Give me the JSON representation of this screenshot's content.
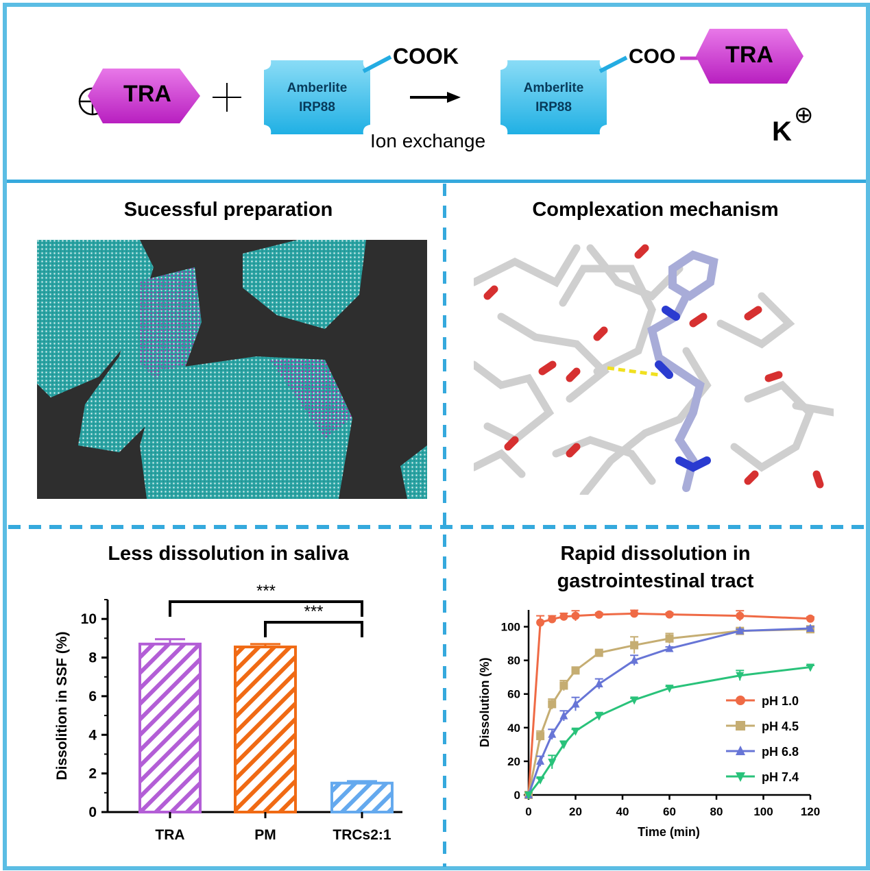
{
  "scheme": {
    "drug": "TRA",
    "plus_sign": "+",
    "cation_symbol": "⊕",
    "resin_line1": "Amberlite",
    "resin_line2": "IRP88",
    "resin_group": "COOK",
    "product_group": "COO",
    "product_drug": "TRA",
    "process_label": "Ion exchange",
    "counter_ion": "K",
    "counter_ion_charge": "⊕",
    "colors": {
      "drug": "#cc33cc",
      "resin": "#3cc2ea",
      "frame": "#5bbde4"
    }
  },
  "panels": {
    "top_left_title": "Sucessful preparation",
    "top_right_title": "Complexation mechanism",
    "bottom_left_title": "Less dissolution in saliva",
    "bottom_right_title_line1": "Rapid dissolution in",
    "bottom_right_title_line2": "gastrointestinal tract"
  },
  "chart_data": [
    {
      "type": "bar",
      "categories": [
        "TRA",
        "PM",
        "TRCs2:1"
      ],
      "values": [
        8.7,
        8.55,
        1.5
      ],
      "errors": [
        0.25,
        0.15,
        0.1
      ],
      "ylabel": "Dissolition in SSF (%)",
      "ylim": [
        0,
        11
      ],
      "yticks": [
        0,
        2,
        4,
        6,
        8,
        10
      ],
      "colors": [
        "#b35ed6",
        "#f06a14",
        "#64a9ee"
      ],
      "pattern": "diagonal-hatch",
      "significance": [
        {
          "from": "TRA",
          "to": "TRCs2:1",
          "label": "***"
        },
        {
          "from": "PM",
          "to": "TRCs2:1",
          "label": "***"
        }
      ]
    },
    {
      "type": "line",
      "xlabel": "Time (min)",
      "ylabel": "Dissolution (%)",
      "xlim": [
        0,
        120
      ],
      "ylim": [
        0,
        110
      ],
      "xticks": [
        0,
        20,
        40,
        60,
        80,
        100,
        120
      ],
      "yticks": [
        0,
        20,
        40,
        60,
        80,
        100
      ],
      "legend_position": "lower-right",
      "series": [
        {
          "name": "pH 1.0",
          "color": "#ef6a45",
          "marker": "circle",
          "x": [
            0,
            5,
            10,
            15,
            20,
            30,
            45,
            60,
            90,
            120
          ],
          "y": [
            0,
            102.5,
            104.5,
            106,
            106.5,
            107.2,
            107.8,
            107.3,
            106.5,
            104.8
          ],
          "err": [
            0,
            4,
            2,
            2,
            3,
            1,
            2,
            1,
            3,
            1
          ]
        },
        {
          "name": "pH 4.5",
          "color": "#c5ad72",
          "marker": "square",
          "x": [
            0,
            5,
            10,
            15,
            20,
            30,
            45,
            60,
            90,
            120
          ],
          "y": [
            0,
            35,
            54,
            65,
            74,
            84.5,
            89,
            93,
            97.5,
            98.5
          ],
          "err": [
            0,
            3,
            3,
            3,
            2,
            1,
            5,
            3,
            1,
            1
          ]
        },
        {
          "name": "pH 6.8",
          "color": "#6775d6",
          "marker": "triangle-up",
          "x": [
            0,
            5,
            10,
            15,
            20,
            30,
            45,
            60,
            90,
            120
          ],
          "y": [
            0,
            20,
            36,
            47,
            54,
            66,
            80,
            87,
            97.5,
            99
          ],
          "err": [
            0,
            3,
            3,
            3,
            4,
            3,
            3,
            1,
            1,
            1
          ]
        },
        {
          "name": "pH 7.4",
          "color": "#29c27a",
          "marker": "triangle-down",
          "x": [
            0,
            5,
            10,
            15,
            20,
            30,
            45,
            60,
            90,
            120
          ],
          "y": [
            0,
            9,
            19.5,
            30,
            38,
            47,
            56.5,
            63.5,
            71,
            76
          ],
          "err": [
            0,
            1,
            4,
            2,
            1,
            2,
            1,
            1,
            3,
            1
          ]
        }
      ]
    }
  ]
}
